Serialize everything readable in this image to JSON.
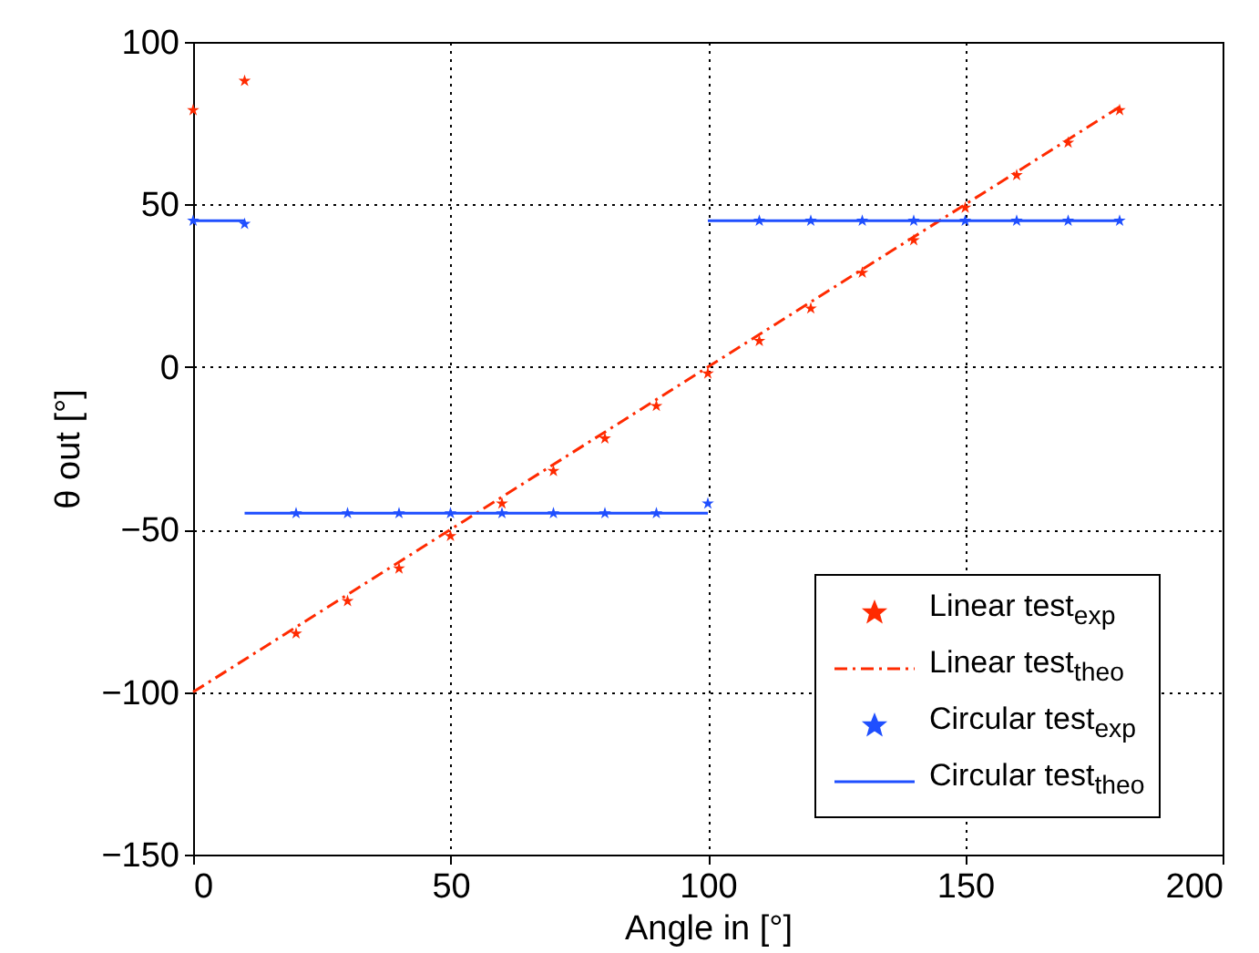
{
  "chart_data": {
    "type": "scatter",
    "xlabel": "Angle in [°]",
    "ylabel": "θ out [°]",
    "xlim": [
      0,
      200
    ],
    "xticks": [
      0,
      50,
      100,
      150,
      200
    ],
    "ylim": [
      -150,
      100
    ],
    "yticks": [
      -150,
      -100,
      -50,
      0,
      50,
      100
    ],
    "grid": true,
    "legend": "bottom right",
    "series": [
      {
        "name": "Linear test$_{exp}$",
        "type": "scatter",
        "marker": "star",
        "color": "#ff2a00",
        "x": [
          0,
          10,
          20,
          30,
          40,
          50,
          60,
          70,
          80,
          90,
          100,
          110,
          120,
          130,
          140,
          150,
          160,
          170,
          180
        ],
        "values": [
          79,
          88,
          -82,
          -72,
          -62,
          -52,
          -42,
          -32,
          -22,
          -12,
          -2,
          8,
          18,
          29,
          39,
          49,
          59,
          69,
          79
        ]
      },
      {
        "name": "Linear test$_{theo}$",
        "type": "line",
        "line_style": "dashed",
        "color": "#ff2a00",
        "x": [
          0,
          180
        ],
        "values": [
          -100,
          80
        ]
      },
      {
        "name": "Circular test$_{exp}$",
        "type": "scatter",
        "marker": "star",
        "color": "#1f4fff",
        "x": [
          0,
          10,
          20,
          30,
          40,
          50,
          60,
          70,
          80,
          90,
          100,
          110,
          120,
          130,
          140,
          150,
          160,
          170,
          180
        ],
        "values": [
          45,
          44,
          -45,
          -45,
          -45,
          -45,
          -45,
          -45,
          -45,
          -45,
          -42,
          45,
          45,
          45,
          45,
          45,
          45,
          45,
          45
        ]
      },
      {
        "name": "Circular test$_{theo}$",
        "type": "line",
        "line_style": "solid",
        "color": "#1f4fff",
        "x": [
          0,
          10,
          null,
          10,
          100,
          null,
          100,
          180
        ],
        "values": [
          45,
          45,
          null,
          -45,
          -45,
          null,
          45,
          45
        ]
      }
    ]
  }
}
